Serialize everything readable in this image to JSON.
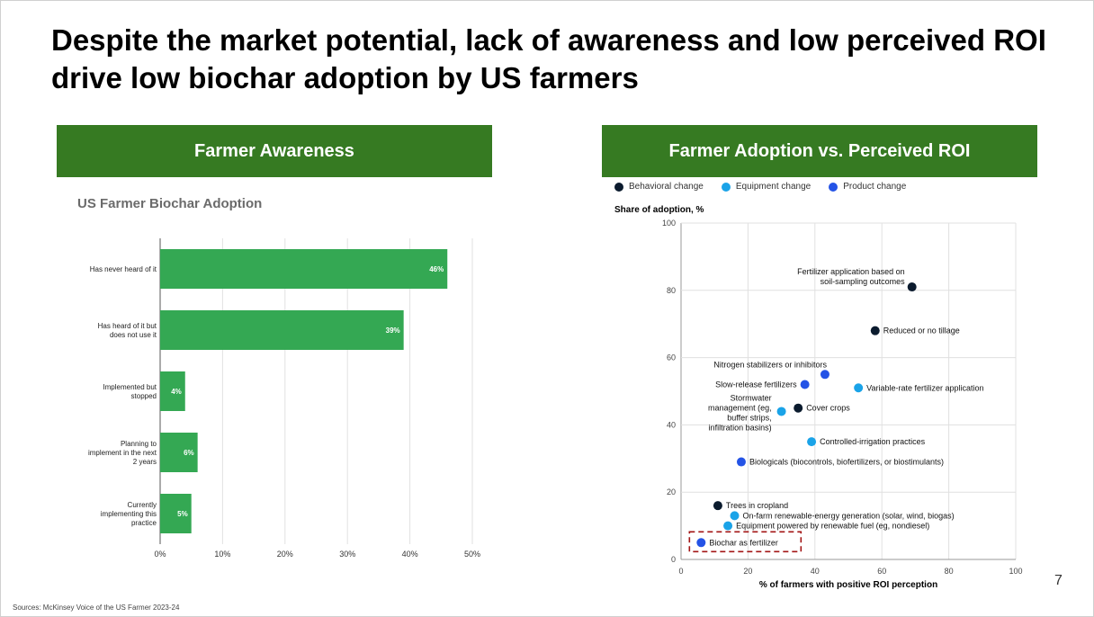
{
  "title": "Despite the market potential, lack of awareness and low perceived ROI drive low biochar adoption by US farmers",
  "left_header": "Farmer Awareness",
  "right_header": "Farmer Adoption vs. Perceived ROI",
  "page_number": "7",
  "source": "Sources: McKinsey Voice of the US Farmer 2023-24",
  "colors": {
    "header_green": "#367a22",
    "bar_green": "#34a853",
    "behavioral": "#0b1b2e",
    "equipment": "#1aa3e8",
    "product": "#2453e6",
    "highlight": "#a31515"
  },
  "chart_data": [
    {
      "type": "bar",
      "orientation": "horizontal",
      "title": "US Farmer Biochar Adoption",
      "categories": [
        [
          "Has never heard of it"
        ],
        [
          "Has heard of it but",
          "does not use it"
        ],
        [
          "Implemented but",
          "stopped"
        ],
        [
          "Planning to",
          "implement in the next",
          "2 years"
        ],
        [
          "Currently",
          "implementing this",
          "practice"
        ]
      ],
      "values": [
        46,
        39,
        4,
        6,
        5
      ],
      "value_labels": [
        "46%",
        "39%",
        "4%",
        "6%",
        "5%"
      ],
      "xlim": [
        0,
        50
      ],
      "xticks": [
        "0%",
        "10%",
        "20%",
        "30%",
        "40%",
        "50%"
      ],
      "grid": true
    },
    {
      "type": "scatter",
      "ylabel": "Share of adoption, %",
      "xlabel": "% of farmers with positive ROI perception",
      "xlim": [
        0,
        100
      ],
      "ylim": [
        0,
        100
      ],
      "xticks": [
        "0",
        "20",
        "40",
        "60",
        "80",
        "100"
      ],
      "yticks": [
        "0",
        "20",
        "40",
        "60",
        "80",
        "100"
      ],
      "grid": true,
      "legend": {
        "placement": "top-left",
        "entries": [
          {
            "key": "behavioral",
            "label": "Behavioral change"
          },
          {
            "key": "equipment",
            "label": "Equipment change"
          },
          {
            "key": "product",
            "label": "Product change"
          }
        ]
      },
      "points": [
        {
          "x": 69,
          "y": 81,
          "cat": "behavioral",
          "label": [
            "Fertilizer application based on",
            "soil-sampling outcomes"
          ],
          "pos": "left-above"
        },
        {
          "x": 58,
          "y": 68,
          "cat": "behavioral",
          "label": [
            "Reduced or no tillage"
          ],
          "pos": "right"
        },
        {
          "x": 43,
          "y": 55,
          "cat": "product",
          "label": [
            "Nitrogen stabilizers or inhibitors"
          ],
          "pos": "above"
        },
        {
          "x": 37,
          "y": 52,
          "cat": "product",
          "label": [
            "Slow-release fertilizers"
          ],
          "pos": "left"
        },
        {
          "x": 53,
          "y": 51,
          "cat": "equipment",
          "label": [
            "Variable-rate fertilizer application"
          ],
          "pos": "right"
        },
        {
          "x": 35,
          "y": 45,
          "cat": "behavioral",
          "label": [
            "Cover crops"
          ],
          "pos": "right"
        },
        {
          "x": 30,
          "y": 44,
          "cat": "equipment",
          "label": [
            "Stormwater",
            "management (eg,",
            "buffer strips,",
            "infiltration basins)"
          ],
          "pos": "left-block"
        },
        {
          "x": 39,
          "y": 35,
          "cat": "equipment",
          "label": [
            "Controlled-irrigation practices"
          ],
          "pos": "right"
        },
        {
          "x": 18,
          "y": 29,
          "cat": "product",
          "label": [
            "Biologicals (biocontrols, biofertilizers, or biostimulants)"
          ],
          "pos": "right"
        },
        {
          "x": 11,
          "y": 16,
          "cat": "behavioral",
          "label": [
            "Trees in cropland"
          ],
          "pos": "right"
        },
        {
          "x": 16,
          "y": 13,
          "cat": "equipment",
          "label": [
            "On-farm renewable-energy generation (solar, wind, biogas)"
          ],
          "pos": "right"
        },
        {
          "x": 14,
          "y": 10,
          "cat": "equipment",
          "label": [
            "Equipment powered by renewable fuel (eg, nondiesel)"
          ],
          "pos": "right"
        },
        {
          "x": 6,
          "y": 5,
          "cat": "product",
          "label": [
            "Biochar as fertilizer"
          ],
          "pos": "right",
          "highlight": true
        }
      ]
    }
  ]
}
